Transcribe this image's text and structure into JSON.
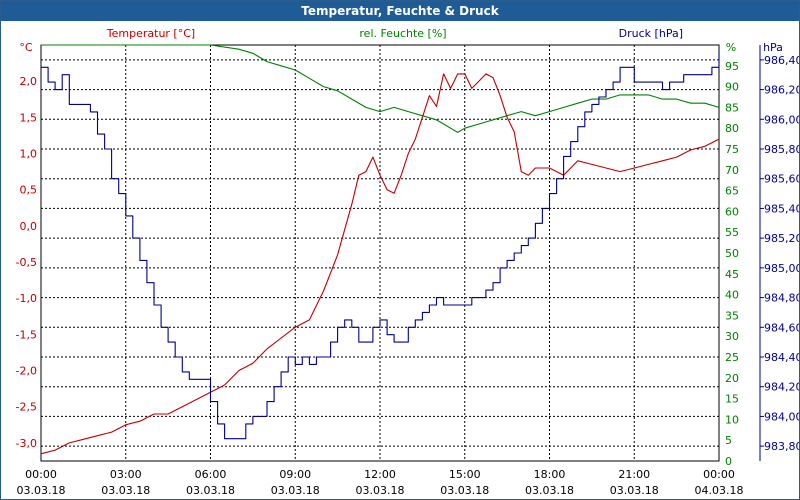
{
  "window": {
    "title": "Temperatur, Feuchte & Druck"
  },
  "colors": {
    "temperature": "#c00000",
    "humidity": "#008000",
    "pressure": "#00008b",
    "grid": "#000000"
  },
  "chart_data": {
    "type": "line",
    "title": "Temperatur, Feuchte & Druck",
    "grid": true,
    "x": {
      "labels": [
        {
          "time": "00:00",
          "date": "03.03.18"
        },
        {
          "time": "03:00",
          "date": "03.03.18"
        },
        {
          "time": "06:00",
          "date": "03.03.18"
        },
        {
          "time": "09:00",
          "date": "03.03.18"
        },
        {
          "time": "12:00",
          "date": "03.03.18"
        },
        {
          "time": "15:00",
          "date": "03.03.18"
        },
        {
          "time": "18:00",
          "date": "03.03.18"
        },
        {
          "time": "21:00",
          "date": "03.03.18"
        },
        {
          "time": "00:00",
          "date": "04.03.18"
        }
      ],
      "range_hours": [
        0,
        24
      ]
    },
    "axes": {
      "temperature": {
        "unit": "°C",
        "label": "Temperatur [°C]",
        "ylim": [
          -3.25,
          2.5
        ],
        "ticks": [
          "2,0",
          "1,5",
          "1,0",
          "0,5",
          "0,0",
          "-0,5",
          "-1,0",
          "-1,5",
          "-2,0",
          "-2,5",
          "-3,0"
        ],
        "tick_values": [
          2.0,
          1.5,
          1.0,
          0.5,
          0.0,
          -0.5,
          -1.0,
          -1.5,
          -2.0,
          -2.5,
          -3.0
        ]
      },
      "humidity": {
        "unit": "%",
        "label": "rel. Feuchte [%]",
        "ylim": [
          0,
          100
        ],
        "ticks": [
          "95",
          "90",
          "85",
          "80",
          "75",
          "70",
          "65",
          "60",
          "55",
          "50",
          "45",
          "40",
          "35",
          "30",
          "25",
          "20",
          "15",
          "10",
          "5",
          "0"
        ],
        "tick_values": [
          95,
          90,
          85,
          80,
          75,
          70,
          65,
          60,
          55,
          50,
          45,
          40,
          35,
          30,
          25,
          20,
          15,
          10,
          5,
          0
        ]
      },
      "pressure": {
        "unit": "hPa",
        "label": "Druck [hPa]",
        "ylim": [
          983.7,
          986.5
        ],
        "ticks": [
          "986,40",
          "986,20",
          "986,00",
          "985,80",
          "985,60",
          "985,40",
          "985,20",
          "985,00",
          "984,80",
          "984,60",
          "984,40",
          "984,20",
          "984,00",
          "983,80"
        ],
        "tick_values": [
          986.4,
          986.2,
          986.0,
          985.8,
          985.6,
          985.4,
          985.2,
          985.0,
          984.8,
          984.6,
          984.4,
          984.2,
          984.0,
          983.8
        ]
      }
    },
    "series": [
      {
        "name": "Temperatur [°C]",
        "axis": "temperature",
        "x": [
          0,
          0.5,
          1,
          1.5,
          2,
          2.5,
          3,
          3.5,
          4,
          4.5,
          5,
          5.5,
          6,
          6.5,
          7,
          7.5,
          8,
          8.5,
          9,
          9.5,
          10,
          10.5,
          11,
          11.25,
          11.5,
          11.75,
          12,
          12.25,
          12.5,
          12.75,
          13,
          13.25,
          13.5,
          13.75,
          14,
          14.25,
          14.5,
          14.75,
          15,
          15.25,
          15.5,
          15.75,
          16,
          16.25,
          16.5,
          16.75,
          17,
          17.25,
          17.5,
          17.75,
          18,
          18.25,
          18.5,
          18.75,
          19,
          19.5,
          20,
          20.5,
          21,
          21.5,
          22,
          22.5,
          23,
          23.5,
          24
        ],
        "values": [
          -3.15,
          -3.1,
          -3.0,
          -2.95,
          -2.9,
          -2.85,
          -2.75,
          -2.7,
          -2.6,
          -2.6,
          -2.5,
          -2.4,
          -2.3,
          -2.2,
          -2.0,
          -1.9,
          -1.7,
          -1.55,
          -1.4,
          -1.3,
          -0.9,
          -0.4,
          0.3,
          0.7,
          0.75,
          0.95,
          0.7,
          0.5,
          0.45,
          0.7,
          1.0,
          1.2,
          1.5,
          1.8,
          1.65,
          2.1,
          1.9,
          2.1,
          2.1,
          1.9,
          2.0,
          2.1,
          2.05,
          1.8,
          1.5,
          1.3,
          0.75,
          0.7,
          0.8,
          0.8,
          0.8,
          0.75,
          0.7,
          0.8,
          0.9,
          0.85,
          0.8,
          0.75,
          0.8,
          0.85,
          0.9,
          0.95,
          1.05,
          1.1,
          1.2
        ]
      },
      {
        "name": "rel. Feuchte [%]",
        "axis": "humidity",
        "x": [
          0,
          1,
          2,
          3,
          4,
          5,
          6,
          7,
          7.5,
          8,
          8.5,
          9,
          9.5,
          10,
          10.5,
          11,
          11.5,
          12,
          12.5,
          13,
          13.5,
          14,
          14.25,
          14.5,
          14.75,
          15,
          15.5,
          16,
          16.5,
          17,
          17.5,
          18,
          18.5,
          19,
          19.5,
          20,
          20.5,
          21,
          21.5,
          22,
          22.5,
          23,
          23.5,
          24
        ],
        "values": [
          100,
          100,
          100,
          100,
          100,
          100,
          100,
          99,
          98,
          96,
          95,
          94,
          92,
          90,
          89,
          87,
          85,
          84,
          85,
          84,
          83,
          82,
          81,
          80,
          79,
          80,
          81,
          82,
          83,
          84,
          83,
          84,
          85,
          86,
          87,
          87,
          88,
          88,
          88,
          87,
          87,
          86,
          86,
          85
        ]
      },
      {
        "name": "Druck [hPa]",
        "axis": "pressure",
        "x": [
          0,
          0.25,
          0.5,
          0.75,
          1,
          1.25,
          1.5,
          1.75,
          2,
          2.25,
          2.5,
          2.75,
          3,
          3.25,
          3.5,
          3.75,
          4,
          4.25,
          4.5,
          4.75,
          5,
          5.25,
          5.5,
          5.75,
          6,
          6.25,
          6.5,
          6.75,
          7,
          7.25,
          7.5,
          7.75,
          8,
          8.25,
          8.5,
          8.75,
          9,
          9.25,
          9.5,
          9.75,
          10,
          10.25,
          10.5,
          10.75,
          11,
          11.25,
          11.5,
          11.75,
          12,
          12.25,
          12.5,
          12.75,
          13,
          13.25,
          13.5,
          13.75,
          14,
          14.25,
          14.5,
          14.75,
          15,
          15.25,
          15.5,
          15.75,
          16,
          16.25,
          16.5,
          16.75,
          17,
          17.25,
          17.5,
          17.75,
          18,
          18.25,
          18.5,
          18.75,
          19,
          19.25,
          19.5,
          19.75,
          20,
          20.25,
          20.5,
          20.75,
          21,
          21.25,
          21.5,
          21.75,
          22,
          22.25,
          22.5,
          22.75,
          23,
          23.25,
          23.5,
          23.75,
          24
        ],
        "values": [
          986.35,
          986.25,
          986.2,
          986.3,
          986.1,
          986.1,
          986.1,
          986.05,
          985.9,
          985.8,
          985.6,
          985.5,
          985.35,
          985.2,
          985.05,
          984.9,
          984.75,
          984.6,
          984.5,
          984.4,
          984.3,
          984.25,
          984.25,
          984.25,
          984.1,
          983.95,
          983.85,
          983.85,
          983.85,
          983.95,
          984.0,
          984.0,
          984.1,
          984.2,
          984.3,
          984.4,
          984.35,
          984.4,
          984.35,
          984.4,
          984.4,
          984.5,
          984.6,
          984.65,
          984.6,
          984.5,
          984.5,
          984.6,
          984.65,
          984.55,
          984.5,
          984.5,
          984.6,
          984.65,
          984.7,
          984.75,
          984.8,
          984.75,
          984.75,
          984.75,
          984.75,
          984.8,
          984.8,
          984.85,
          984.9,
          985.0,
          985.05,
          985.1,
          985.15,
          985.2,
          985.3,
          985.4,
          985.5,
          985.6,
          985.75,
          985.85,
          985.95,
          986.05,
          986.1,
          986.15,
          986.2,
          986.25,
          986.35,
          986.35,
          986.25,
          986.25,
          986.25,
          986.25,
          986.2,
          986.25,
          986.25,
          986.3,
          986.3,
          986.3,
          986.3,
          986.35,
          986.45
        ]
      }
    ]
  }
}
